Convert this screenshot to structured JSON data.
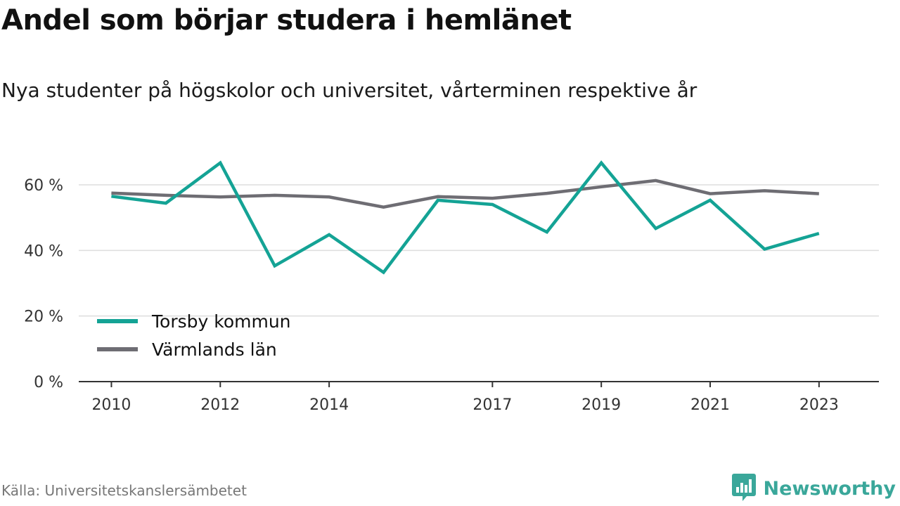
{
  "header": {
    "title": "Andel som börjar studera i hemlänet",
    "subtitle": "Nya studenter på högskolor och universitet, vårterminen respektive år"
  },
  "footer": {
    "source": "Källa: Universitetskanslersämbetet",
    "brand": "Newsworthy",
    "brand_icon": "bar-chart-speech-bubble-icon"
  },
  "colors": {
    "torsby": "#14a395",
    "varmland": "#6e6d73",
    "grid": "#dddddd",
    "axis": "#333333",
    "brand": "#3aa79a"
  },
  "chart_data": {
    "type": "line",
    "x": [
      2010,
      2011,
      2012,
      2013,
      2014,
      2015,
      2016,
      2017,
      2018,
      2019,
      2020,
      2021,
      2022,
      2023
    ],
    "x_tick_labels": [
      "2010",
      "2012",
      "2014",
      "2017",
      "2019",
      "2021",
      "2023"
    ],
    "x_ticks": [
      2010,
      2012,
      2014,
      2017,
      2019,
      2021,
      2023
    ],
    "xlim": [
      2009.4,
      2024.1
    ],
    "y_ticks": [
      0,
      20,
      40,
      60
    ],
    "y_tick_labels": [
      "0 %",
      "20 %",
      "40 %",
      "60 %"
    ],
    "ylim": [
      0,
      60
    ],
    "grid": true,
    "legend_position": "bottom-left",
    "series": [
      {
        "name": "Torsby kommun",
        "color": "#14a395",
        "values": [
          56.5,
          54.4,
          66.7,
          35.3,
          44.8,
          33.3,
          55.3,
          54.0,
          45.6,
          66.7,
          46.7,
          55.3,
          40.4,
          45.2
        ]
      },
      {
        "name": "Värmlands län",
        "color": "#6e6d73",
        "values": [
          57.5,
          56.8,
          56.3,
          56.8,
          56.3,
          53.2,
          56.4,
          55.9,
          57.4,
          59.4,
          61.3,
          57.3,
          58.2,
          57.3
        ]
      }
    ]
  }
}
